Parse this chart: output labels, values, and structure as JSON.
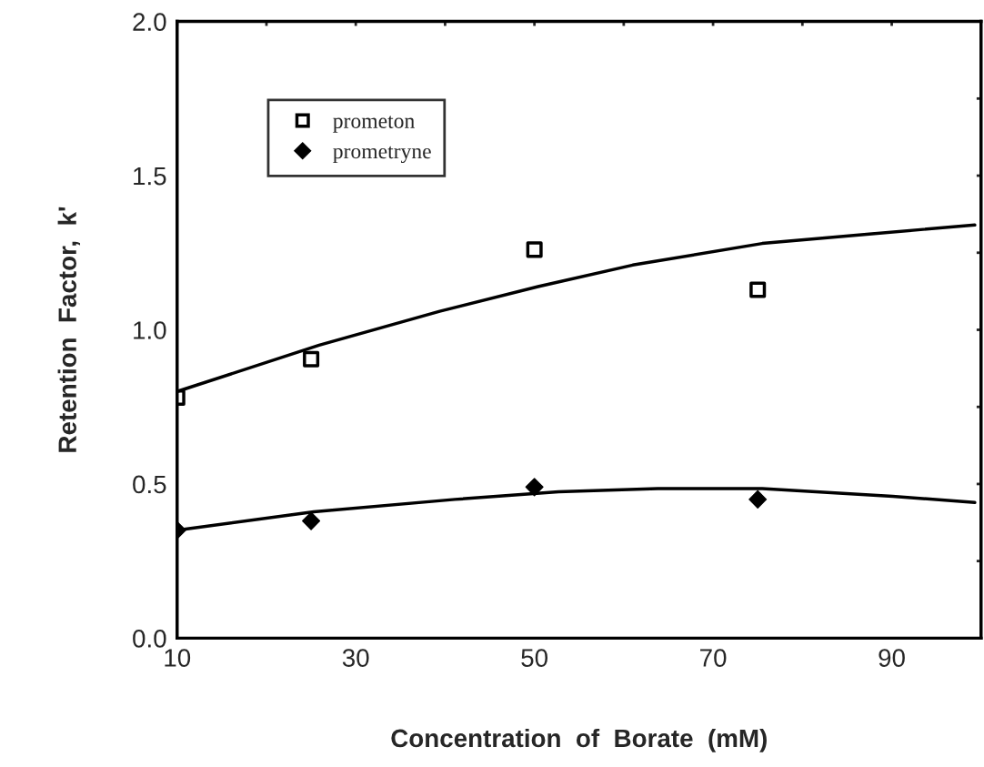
{
  "chart_data": {
    "type": "scatter",
    "xlabel": "Concentration  of  Borate  (mM)",
    "ylabel": "Retention  Factor,  k'",
    "xlim": [
      10,
      100
    ],
    "ylim": [
      0,
      2
    ],
    "xticks": [
      10,
      {
        "value": 20,
        "label": null
      },
      30,
      {
        "value": 40,
        "label": null
      },
      50,
      {
        "value": 60,
        "label": null
      },
      70,
      {
        "value": 80,
        "label": null
      },
      90
    ],
    "yticks": [
      {
        "value": 0,
        "label": "0.0"
      },
      {
        "value": 0.25,
        "label": null
      },
      0.5,
      {
        "value": 0.75,
        "label": null
      },
      {
        "value": 1,
        "label": "1.0"
      },
      {
        "value": 1.25,
        "label": null
      },
      1.5,
      {
        "value": 1.75,
        "label": null
      },
      {
        "value": 2,
        "label": "2.0"
      }
    ],
    "grid": false,
    "legend": "top left",
    "series": [
      {
        "name": "prometon",
        "marker": "square",
        "color": "#000000",
        "x": [
          10,
          25,
          50,
          75
        ],
        "values": [
          0.78,
          0.905,
          1.26,
          1.13
        ]
      },
      {
        "name": "prometryne",
        "marker": "diamond",
        "color": "#000000",
        "x": [
          10,
          25,
          50,
          75
        ],
        "values": [
          0.35,
          0.38,
          0.49,
          0.45
        ]
      },
      {
        "type": "line",
        "marker": "none",
        "line_style": "solid",
        "color": "#000000",
        "x": [
          10,
          25.9,
          39.4,
          50.4,
          61.0,
          75.5,
          87.2,
          99.3
        ],
        "values": [
          0.8,
          0.95,
          1.06,
          1.14,
          1.21,
          1.28,
          1.31,
          1.34
        ]
      },
      {
        "type": "line",
        "marker": "none",
        "line_style": "solid",
        "color": "#000000",
        "x": [
          10,
          25.3,
          41.1,
          52.7,
          63.8,
          75.5,
          90.1,
          99.3
        ],
        "values": [
          0.35,
          0.41,
          0.45,
          0.475,
          0.485,
          0.485,
          0.46,
          0.44
        ]
      }
    ]
  }
}
